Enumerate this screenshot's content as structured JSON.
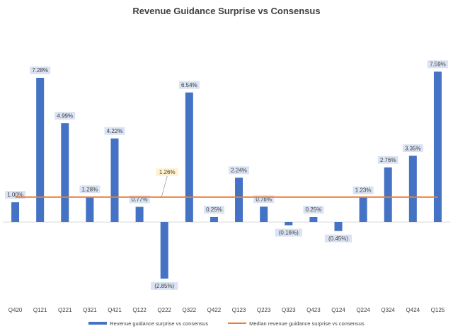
{
  "chart_data": {
    "type": "bar",
    "title": "Revenue Guidance Surprise vs Consensus",
    "xlabel": "",
    "ylabel": "",
    "ylim": [
      -3.5,
      8.5
    ],
    "grid": false,
    "legend_position": "bottom",
    "categories": [
      "Q420",
      "Q121",
      "Q221",
      "Q321",
      "Q421",
      "Q122",
      "Q222",
      "Q322",
      "Q422",
      "Q123",
      "Q223",
      "Q323",
      "Q423",
      "Q124",
      "Q224",
      "Q324",
      "Q424",
      "Q125"
    ],
    "series": [
      {
        "name": "Revenue guidance surprise vs consensus",
        "type": "bar",
        "color": "#4472C4",
        "values": [
          1.0,
          7.28,
          4.99,
          1.28,
          4.22,
          0.77,
          -2.85,
          6.54,
          0.25,
          2.24,
          0.78,
          -0.16,
          0.25,
          -0.45,
          1.23,
          2.76,
          3.35,
          7.59
        ],
        "labels": [
          "1.00%",
          "7.28%",
          "4.99%",
          "1.28%",
          "4.22%",
          "0.77%",
          "(2.85%)",
          "6.54%",
          "0.25%",
          "2.24%",
          "0.78%",
          "(0.16%)",
          "0.25%",
          "(0.45%)",
          "1.23%",
          "2.76%",
          "3.35%",
          "7.59%"
        ]
      },
      {
        "name": "Median revenue guidance surprise vs consensus",
        "type": "line",
        "color": "#ED7D31",
        "value": 1.26,
        "label": "1.26%"
      }
    ]
  }
}
